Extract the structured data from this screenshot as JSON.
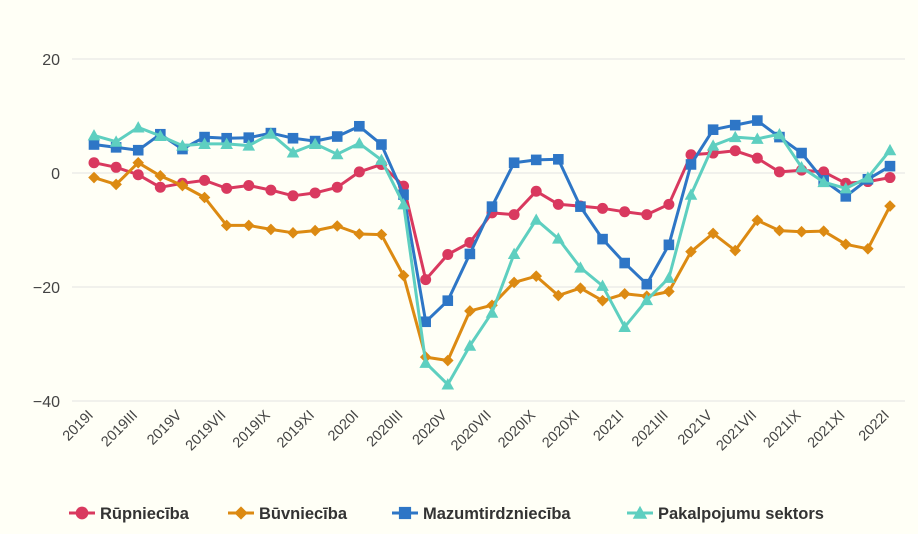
{
  "chart_data": {
    "type": "line",
    "title": "",
    "xlabel": "",
    "ylabel": "",
    "ylim": [
      -40,
      20
    ],
    "yticks": [
      20,
      0,
      -20,
      -40
    ],
    "y_tick_labels": [
      "20",
      "0",
      "−20",
      "−40"
    ],
    "grid": true,
    "legend_position": "bottom",
    "x": [
      "2019I",
      "2019II",
      "2019III",
      "2019IV",
      "2019V",
      "2019VI",
      "2019VII",
      "2019VIII",
      "2019IX",
      "2019X",
      "2019XI",
      "2019XII",
      "2020I",
      "2020II",
      "2020III",
      "2020IV",
      "2020V",
      "2020VI",
      "2020VII",
      "2020VIII",
      "2020IX",
      "2020X",
      "2020XI",
      "2020XII",
      "2021I",
      "2021II",
      "2021III",
      "2021IV",
      "2021V",
      "2021VI",
      "2021VII",
      "2021VIII",
      "2021IX",
      "2021X",
      "2021XI",
      "2021XII",
      "2022I"
    ],
    "x_tick_labels": [
      "2019I",
      "2019III",
      "2019V",
      "2019VII",
      "2019IX",
      "2019XI",
      "2020I",
      "2020III",
      "2020V",
      "2020VII",
      "2020IX",
      "2020XI",
      "2021I",
      "2021III",
      "2021V",
      "2021VII",
      "2021IX",
      "2021XI",
      "2022I"
    ],
    "series": [
      {
        "name": "Rūpniecība",
        "color": "#d9395f",
        "marker": "circle",
        "values": [
          1.8,
          1.0,
          -0.3,
          -2.5,
          -1.8,
          -1.3,
          -2.7,
          -2.2,
          -3.0,
          -4.0,
          -3.5,
          -2.5,
          0.2,
          1.5,
          -2.3,
          -18.7,
          -14.3,
          -12.2,
          -7.0,
          -7.3,
          -3.2,
          -5.5,
          -5.8,
          -6.2,
          -6.8,
          -7.3,
          -5.5,
          3.2,
          3.5,
          3.9,
          2.6,
          0.2,
          0.5,
          0.2,
          -1.8,
          -1.5,
          -0.8
        ]
      },
      {
        "name": "Būvniecība",
        "color": "#dc8a12",
        "marker": "diamond",
        "values": [
          -0.8,
          -2.0,
          1.8,
          -0.5,
          -2.2,
          -4.3,
          -9.2,
          -9.2,
          -9.9,
          -10.5,
          -10.1,
          -9.3,
          -10.7,
          -10.8,
          -18.0,
          -32.3,
          -32.9,
          -24.2,
          -23.2,
          -19.2,
          -18.1,
          -21.5,
          -20.2,
          -22.4,
          -21.2,
          -21.6,
          -20.8,
          -13.8,
          -10.6,
          -13.6,
          -8.3,
          -10.1,
          -10.3,
          -10.2,
          -12.5,
          -13.3,
          -5.8
        ]
      },
      {
        "name": "Mazumtirdzniecība",
        "color": "#2e76c6",
        "marker": "square",
        "values": [
          5.0,
          4.5,
          4.0,
          6.8,
          4.2,
          6.3,
          6.1,
          6.2,
          7.0,
          6.1,
          5.6,
          6.4,
          8.2,
          5.0,
          -3.8,
          -26.1,
          -22.4,
          -14.2,
          -5.9,
          1.8,
          2.3,
          2.4,
          -5.9,
          -11.6,
          -15.8,
          -19.5,
          -12.6,
          1.5,
          7.6,
          8.4,
          9.2,
          6.3,
          3.5,
          -1.3,
          -4.1,
          -1.1,
          1.2
        ]
      },
      {
        "name": "Pakalpojumu sektors",
        "color": "#5ecfc0",
        "marker": "triangle",
        "values": [
          6.6,
          5.5,
          8.0,
          6.5,
          4.8,
          5.1,
          5.1,
          4.8,
          6.9,
          3.6,
          5.1,
          3.3,
          5.2,
          2.3,
          -5.5,
          -33.3,
          -37.1,
          -30.3,
          -24.5,
          -14.2,
          -8.2,
          -11.5,
          -16.6,
          -19.8,
          -27.0,
          -22.3,
          -18.4,
          -3.8,
          4.8,
          6.3,
          6.0,
          6.8,
          1.0,
          -1.6,
          -2.7,
          -0.8,
          4.0
        ]
      }
    ]
  }
}
